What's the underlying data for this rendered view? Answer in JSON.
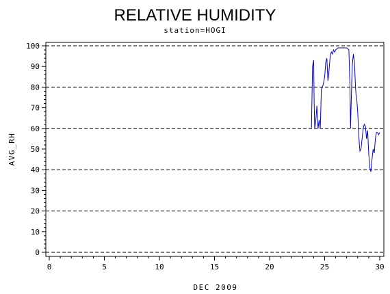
{
  "chart_data": {
    "type": "line",
    "title": "RELATIVE HUMIDITY",
    "subtitle": "station=HOGI",
    "xlabel": "DEC 2009",
    "ylabel": "AVG_RH",
    "xlim": [
      0,
      30
    ],
    "ylim": [
      0,
      100
    ],
    "x_ticks": [
      0,
      5,
      10,
      15,
      20,
      25,
      30
    ],
    "y_ticks": [
      0,
      10,
      20,
      30,
      40,
      50,
      60,
      70,
      80,
      90,
      100
    ],
    "gridlines_y": [
      0,
      20,
      40,
      60,
      80,
      100
    ],
    "grid": "horizontal dashed",
    "line_color": "#0000cc",
    "series": [
      {
        "x": [
          23.8,
          23.9,
          24.0,
          24.05,
          24.1,
          24.2,
          24.3,
          24.4,
          24.5,
          24.6,
          24.7,
          24.8,
          24.9,
          25.0,
          25.1,
          25.2,
          25.3,
          25.4,
          25.5,
          25.6,
          25.7,
          25.8,
          25.9,
          26.0,
          26.2,
          26.4,
          26.6,
          26.8,
          27.0,
          27.2,
          27.3,
          27.35,
          27.4,
          27.45,
          27.5,
          27.6,
          27.7,
          27.8,
          27.85,
          27.9,
          28.0,
          28.1,
          28.2,
          28.3,
          28.4,
          28.5,
          28.6,
          28.7,
          28.8,
          28.9,
          29.0,
          29.1,
          29.2,
          29.3,
          29.4,
          29.5,
          29.6,
          29.7,
          29.8,
          29.9,
          30.0
        ],
        "y": [
          60,
          90,
          93,
          72,
          60,
          64,
          71,
          60,
          64,
          60,
          79,
          80,
          82,
          85,
          92,
          94,
          83,
          88,
          95,
          97,
          96,
          98,
          97,
          98,
          99,
          99,
          99,
          99,
          99,
          98,
          80,
          60,
          70,
          80,
          90,
          96,
          92,
          80,
          76,
          75,
          68,
          56,
          49,
          50,
          55,
          60,
          62,
          61,
          55,
          59,
          48,
          41,
          39,
          45,
          50,
          48,
          55,
          58,
          58,
          57,
          58
        ]
      }
    ]
  }
}
